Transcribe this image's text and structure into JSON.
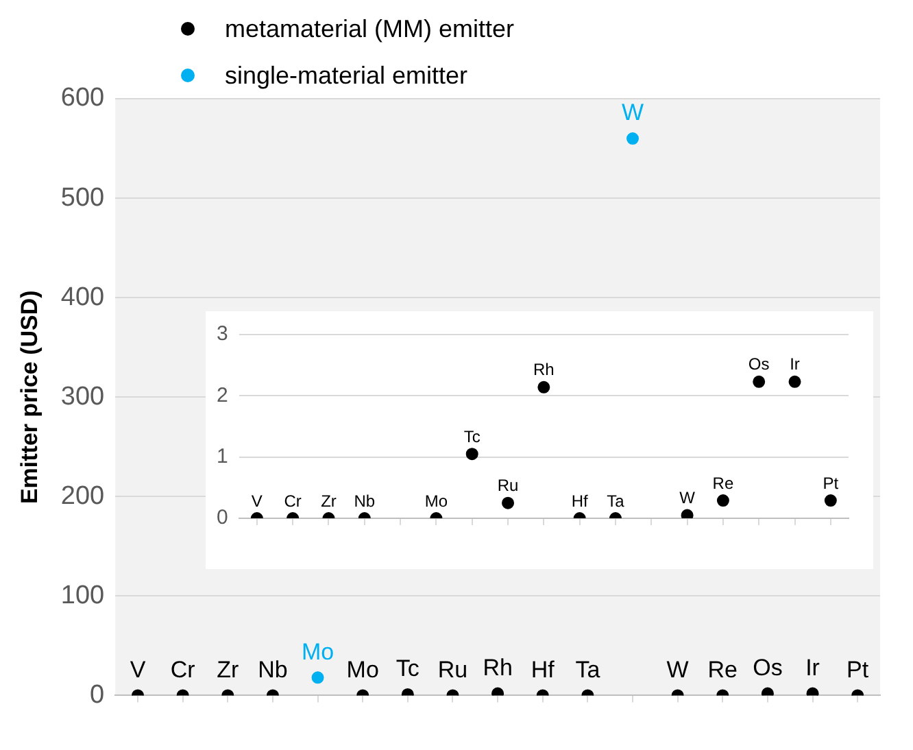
{
  "chart_data": [
    {
      "type": "scatter",
      "ylabel": "Emitter price (USD)",
      "categories": [
        null,
        null,
        null,
        null,
        null,
        null,
        null,
        null,
        null,
        null,
        null,
        null,
        null,
        null,
        null,
        null,
        null
      ],
      "ylim": [
        0,
        600
      ],
      "yticks": [
        0,
        100,
        200,
        300,
        400,
        500,
        600
      ],
      "grid": "y",
      "legend": "top left",
      "marker": "circle",
      "series": [
        {
          "name": "metamaterial (MM) emitter",
          "color": "#000000",
          "values": [
            0,
            0,
            0,
            0,
            null,
            0,
            1,
            0,
            2,
            0,
            0,
            null,
            0,
            0,
            2,
            2,
            0
          ],
          "value_labels": [
            "V",
            "Cr",
            "Zr",
            "Nb",
            null,
            "Mo",
            "Tc",
            "Ru",
            "Rh",
            "Hf",
            "Ta",
            null,
            "W",
            "Re",
            "Os",
            "Ir",
            "Pt"
          ]
        },
        {
          "name": "single-material emitter",
          "color": "#00b0f0",
          "values": [
            null,
            null,
            null,
            null,
            18,
            null,
            null,
            null,
            null,
            null,
            null,
            560,
            null,
            null,
            null,
            null,
            null
          ],
          "value_labels": [
            null,
            null,
            null,
            null,
            "Mo",
            null,
            null,
            null,
            null,
            null,
            null,
            "W",
            null,
            null,
            null,
            null,
            null
          ]
        }
      ]
    },
    {
      "type": "scatter",
      "categories": [
        null,
        null,
        null,
        null,
        null,
        null,
        null,
        null,
        null,
        null,
        null,
        null,
        null,
        null,
        null,
        null,
        null
      ],
      "ylim": [
        0,
        3
      ],
      "yticks": [
        0,
        1,
        2,
        3
      ],
      "grid": "y",
      "marker": "circle",
      "series": [
        {
          "color": "#000000",
          "values": [
            0,
            0,
            0,
            0,
            null,
            0,
            1.05,
            0.25,
            2.14,
            0,
            0,
            null,
            0.05,
            0.29,
            2.23,
            2.23,
            0.29
          ],
          "value_labels": [
            "V",
            "Cr",
            "Zr",
            "Nb",
            null,
            "Mo",
            "Tc",
            "Ru",
            "Rh",
            "Hf",
            "Ta",
            null,
            "W",
            "Re",
            "Os",
            "Ir",
            "Pt"
          ]
        }
      ]
    }
  ]
}
